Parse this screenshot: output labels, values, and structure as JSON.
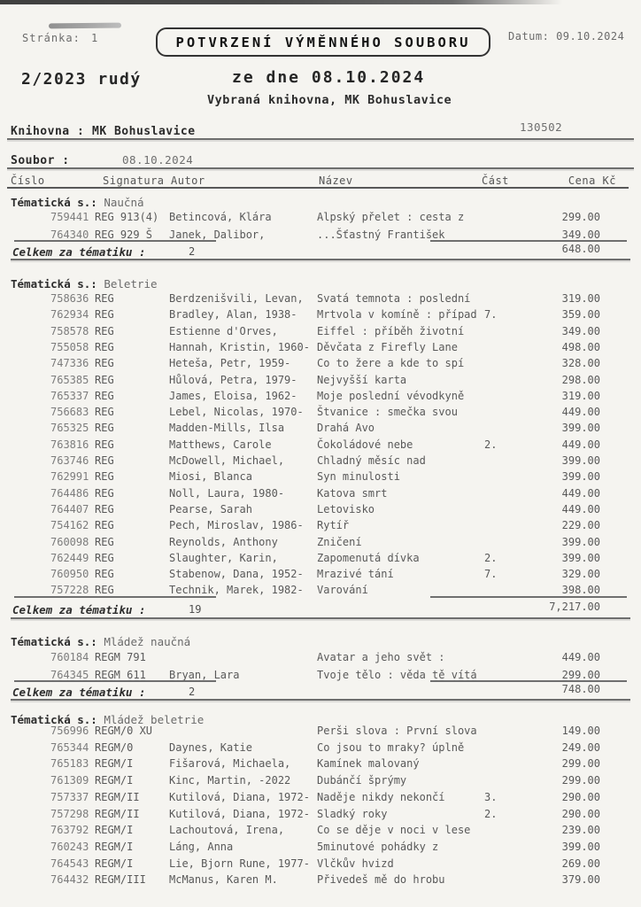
{
  "header": {
    "stranka_label": "Stránka:",
    "stranka_value": "1",
    "title": "POTVRZENÍ VÝMĚNNÉHO SOUBORU",
    "datum": "Datum: 09.10.2024",
    "batch": "2/2023 rudý",
    "ze_dne": "ze dne 08.10.2024",
    "vybrana": "Vybraná knihovna, MK Bohuslavice",
    "knihovna_label": "Knihovna :",
    "knihovna_value": "MK Bohuslavice",
    "knihovna_code": "130502",
    "soubor_label": "Soubor :",
    "soubor_value": "08.10.2024"
  },
  "table": {
    "section_label": "Tématická s.:",
    "total_label": "Celkem za tématiku :",
    "columns": {
      "cislo": "Číslo",
      "signatura": "Signatura",
      "autor": "Autor",
      "nazev": "Název",
      "cast": "Část",
      "cena": "Cena Kč"
    },
    "sections": [
      {
        "category": "Naučná",
        "rows": [
          {
            "cislo": "759441",
            "signatura": "REG 913(4)",
            "autor": "Betincová, Klára",
            "nazev": "Alpský přelet : cesta z",
            "cast": "",
            "cena": "299.00"
          },
          {
            "cislo": "764340",
            "signatura": "REG 929 Š",
            "autor": "Janek, Dalibor,",
            "nazev": "...Šťastný František",
            "cast": "",
            "cena": "349.00"
          }
        ],
        "total": {
          "count": "2",
          "amount": "648.00"
        }
      },
      {
        "category": "Beletrie",
        "rows": [
          {
            "cislo": "758636",
            "signatura": "REG",
            "autor": "Berdzenišvili, Levan,",
            "nazev": "Svatá temnota : poslední",
            "cast": "",
            "cena": "319.00"
          },
          {
            "cislo": "762934",
            "signatura": "REG",
            "autor": "Bradley, Alan, 1938-",
            "nazev": "Mrtvola v komíně : případ",
            "cast": "7.",
            "cena": "359.00"
          },
          {
            "cislo": "758578",
            "signatura": "REG",
            "autor": "Estienne d'Orves,",
            "nazev": "Eiffel : příběh životní",
            "cast": "",
            "cena": "349.00"
          },
          {
            "cislo": "755058",
            "signatura": "REG",
            "autor": "Hannah, Kristin, 1960-",
            "nazev": "Děvčata z Firefly Lane",
            "cast": "",
            "cena": "498.00"
          },
          {
            "cislo": "747336",
            "signatura": "REG",
            "autor": "Heteša, Petr, 1959-",
            "nazev": "Co to žere a kde to spí",
            "cast": "",
            "cena": "328.00"
          },
          {
            "cislo": "765385",
            "signatura": "REG",
            "autor": "Hůlová, Petra, 1979-",
            "nazev": "Nejvyšší karta",
            "cast": "",
            "cena": "298.00"
          },
          {
            "cislo": "765337",
            "signatura": "REG",
            "autor": "James, Eloisa, 1962-",
            "nazev": "Moje poslední vévodkyně",
            "cast": "",
            "cena": "319.00"
          },
          {
            "cislo": "756683",
            "signatura": "REG",
            "autor": "Lebel, Nicolas, 1970-",
            "nazev": "Štvanice : smečka svou",
            "cast": "",
            "cena": "449.00"
          },
          {
            "cislo": "765325",
            "signatura": "REG",
            "autor": "Madden-Mills, Ilsa",
            "nazev": "Drahá Avo",
            "cast": "",
            "cena": "399.00"
          },
          {
            "cislo": "763816",
            "signatura": "REG",
            "autor": "Matthews, Carole",
            "nazev": "Čokoládové nebe",
            "cast": "2.",
            "cena": "449.00"
          },
          {
            "cislo": "763746",
            "signatura": "REG",
            "autor": "McDowell, Michael,",
            "nazev": "Chladný měsíc nad",
            "cast": "",
            "cena": "399.00"
          },
          {
            "cislo": "762991",
            "signatura": "REG",
            "autor": "Miosi, Blanca",
            "nazev": "Syn minulosti",
            "cast": "",
            "cena": "399.00"
          },
          {
            "cislo": "764486",
            "signatura": "REG",
            "autor": "Noll, Laura, 1980-",
            "nazev": "Katova smrt",
            "cast": "",
            "cena": "449.00"
          },
          {
            "cislo": "764407",
            "signatura": "REG",
            "autor": "Pearse, Sarah",
            "nazev": "Letovisko",
            "cast": "",
            "cena": "449.00"
          },
          {
            "cislo": "754162",
            "signatura": "REG",
            "autor": "Pech, Miroslav, 1986-",
            "nazev": "Rytíř",
            "cast": "",
            "cena": "229.00"
          },
          {
            "cislo": "760098",
            "signatura": "REG",
            "autor": "Reynolds, Anthony",
            "nazev": "Zničení",
            "cast": "",
            "cena": "399.00"
          },
          {
            "cislo": "762449",
            "signatura": "REG",
            "autor": "Slaughter, Karin,",
            "nazev": "Zapomenutá dívka",
            "cast": "2.",
            "cena": "399.00"
          },
          {
            "cislo": "760950",
            "signatura": "REG",
            "autor": "Stabenow, Dana, 1952-",
            "nazev": "Mrazivé tání",
            "cast": "7.",
            "cena": "329.00"
          },
          {
            "cislo": "757228",
            "signatura": "REG",
            "autor": "Technik, Marek, 1982-",
            "nazev": "Varování",
            "cast": "",
            "cena": "398.00"
          }
        ],
        "total": {
          "count": "19",
          "amount": "7,217.00"
        }
      },
      {
        "category": "Mládež naučná",
        "rows": [
          {
            "cislo": "760184",
            "signatura": "REGM 791",
            "autor": "",
            "nazev": "Avatar a jeho svět :",
            "cast": "",
            "cena": "449.00"
          },
          {
            "cislo": "764345",
            "signatura": "REGM 611",
            "autor": "Bryan, Lara",
            "nazev": "Tvoje tělo : věda tě vítá",
            "cast": "",
            "cena": "299.00"
          }
        ],
        "total": {
          "count": "2",
          "amount": "748.00"
        }
      },
      {
        "category": "Mládež beletrie",
        "rows": [
          {
            "cislo": "756996",
            "signatura": "REGM/0 XU",
            "autor": "",
            "nazev": "Perši slova : První slova",
            "cast": "",
            "cena": "149.00"
          },
          {
            "cislo": "765344",
            "signatura": "REGM/0",
            "autor": "Daynes, Katie",
            "nazev": "Co jsou to mraky? úplně",
            "cast": "",
            "cena": "249.00"
          },
          {
            "cislo": "765183",
            "signatura": "REGM/I",
            "autor": "Fišarová, Michaela,",
            "nazev": "Kamínek malovaný",
            "cast": "",
            "cena": "299.00"
          },
          {
            "cislo": "761309",
            "signatura": "REGM/I",
            "autor": "Kinc, Martin, -2022",
            "nazev": "Dubánčí šprýmy",
            "cast": "",
            "cena": "299.00"
          },
          {
            "cislo": "757337",
            "signatura": "REGM/II",
            "autor": "Kutilová, Diana, 1972-",
            "nazev": "Naděje nikdy nekončí",
            "cast": "3.",
            "cena": "290.00"
          },
          {
            "cislo": "757298",
            "signatura": "REGM/II",
            "autor": "Kutilová, Diana, 1972-",
            "nazev": "Sladký roky",
            "cast": "2.",
            "cena": "290.00"
          },
          {
            "cislo": "763792",
            "signatura": "REGM/I",
            "autor": "Lachoutová, Irena,",
            "nazev": "Co se děje v noci v lese",
            "cast": "",
            "cena": "239.00"
          },
          {
            "cislo": "760243",
            "signatura": "REGM/I",
            "autor": "Láng, Anna",
            "nazev": "5minutové pohádky z",
            "cast": "",
            "cena": "399.00"
          },
          {
            "cislo": "764543",
            "signatura": "REGM/I",
            "autor": "Lie, Bjorn Rune, 1977-",
            "nazev": "Vlčkův hvizd",
            "cast": "",
            "cena": "269.00"
          },
          {
            "cislo": "764432",
            "signatura": "REGM/III",
            "autor": "McManus, Karen M.",
            "nazev": "Přivedeš mě do hrobu",
            "cast": "",
            "cena": "379.00"
          }
        ],
        "total": null
      }
    ]
  }
}
